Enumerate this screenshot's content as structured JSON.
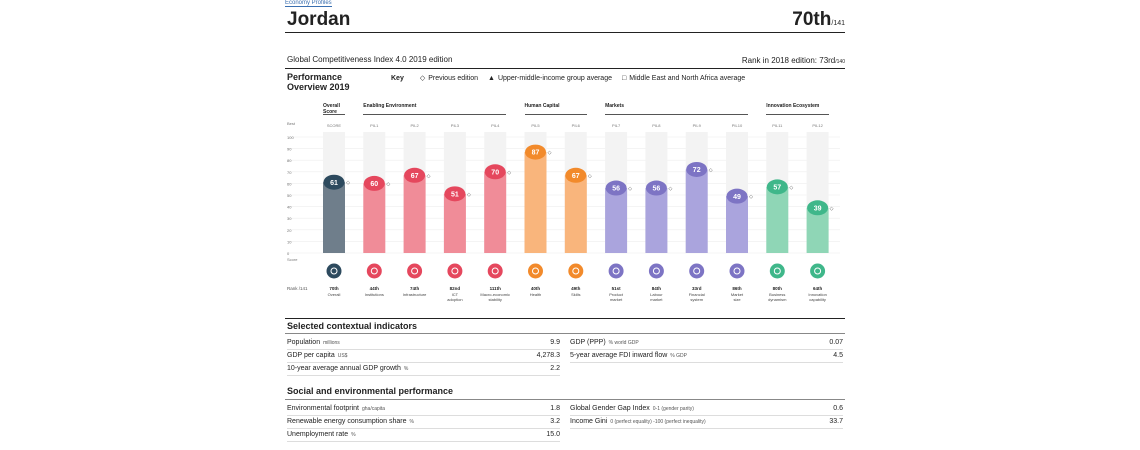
{
  "header": {
    "tag": "Economy Profiles",
    "country": "Jordan",
    "rank": "70th",
    "rank_of": "/141",
    "subtitle": "Global Competitiveness Index 4.0 2019 edition",
    "prev_rank": "Rank in 2018 edition: 73rd",
    "prev_rank_of": "/140"
  },
  "performance": {
    "title": "Performance Overview 2019",
    "key_label": "Key",
    "key_items": [
      {
        "symbol": "◇",
        "label": "Previous edition"
      },
      {
        "symbol": "▲",
        "label": "Upper-middle-income group average"
      },
      {
        "symbol": "□",
        "label": "Middle East and North Africa average"
      }
    ]
  },
  "chart_data": {
    "type": "bar",
    "title": "Performance Overview 2019",
    "ylim": [
      0,
      100
    ],
    "yticks": [
      0,
      10,
      20,
      30,
      40,
      50,
      60,
      70,
      80,
      90,
      100
    ],
    "ytick_top_label": "Best",
    "ytick_bottom_label": "Score",
    "groups": [
      {
        "name": "Overall Score",
        "start": 0,
        "end": 0
      },
      {
        "name": "Enabling Environment",
        "start": 1,
        "end": 4
      },
      {
        "name": "Human Capital",
        "start": 5,
        "end": 6
      },
      {
        "name": "Markets",
        "start": 7,
        "end": 10
      },
      {
        "name": "Innovation Ecosystem",
        "start": 11,
        "end": 12
      }
    ],
    "categories": [
      "Overall",
      "Institutions",
      "Infrastructure",
      "ICT adoption",
      "Macro-economic stability",
      "Health",
      "Skills",
      "Product market",
      "Labour market",
      "Financial system",
      "Market size",
      "Business dynamism",
      "Innovation capability"
    ],
    "codes": [
      "SCORE",
      "PIL1",
      "PIL2",
      "PIL3",
      "PIL4",
      "PIL5",
      "PIL6",
      "PIL7",
      "PIL8",
      "PIL9",
      "PIL10",
      "PIL11",
      "PIL12"
    ],
    "values": [
      61,
      60,
      67,
      51,
      70,
      87,
      67,
      56,
      56,
      72,
      49,
      57,
      39
    ],
    "ranks": [
      "70th",
      "44th",
      "74th",
      "82nd",
      "111th",
      "40th",
      "49th",
      "51st",
      "84th",
      "33rd",
      "86th",
      "80th",
      "64th"
    ],
    "rank_label": "Rank /141",
    "colors": [
      "#2d4a5e",
      "#e5475d",
      "#e5475d",
      "#e5475d",
      "#e5475d",
      "#f28a2b",
      "#f28a2b",
      "#7d74c4",
      "#7d74c4",
      "#7d74c4",
      "#7d74c4",
      "#3fb78a",
      "#3fb78a"
    ],
    "bar_colors": [
      "#6f7e8b",
      "#f08c98",
      "#f08c98",
      "#f08c98",
      "#f08c98",
      "#f9b57c",
      "#f9b57c",
      "#aaa4dd",
      "#aaa4dd",
      "#aaa4dd",
      "#aaa4dd",
      "#8fd6b6",
      "#8fd6b6"
    ]
  },
  "contextual": {
    "title": "Selected contextual indicators",
    "left": [
      {
        "label": "Population",
        "unit": "millions",
        "value": "9.9"
      },
      {
        "label": "GDP per capita",
        "unit": "US$",
        "value": "4,278.3"
      },
      {
        "label": "10-year average annual GDP growth",
        "unit": "%",
        "value": "2.2"
      }
    ],
    "right": [
      {
        "label": "GDP (PPP)",
        "unit": "% world GDP",
        "value": "0.07"
      },
      {
        "label": "5-year average FDI inward flow",
        "unit": "% GDP",
        "value": "4.5"
      }
    ]
  },
  "social": {
    "title": "Social and environmental performance",
    "left": [
      {
        "label": "Environmental footprint",
        "unit": "gha/capita",
        "value": "1.8"
      },
      {
        "label": "Renewable energy consumption share",
        "unit": "%",
        "value": "3.2"
      },
      {
        "label": "Unemployment rate",
        "unit": "%",
        "value": "15.0"
      }
    ],
    "right": [
      {
        "label": "Global Gender Gap Index",
        "unit": "0-1 (gender parity)",
        "value": "0.6"
      },
      {
        "label": "Income Gini",
        "unit": "0 (perfect equality) -100 (perfect inequality)",
        "value": "33.7"
      }
    ]
  }
}
